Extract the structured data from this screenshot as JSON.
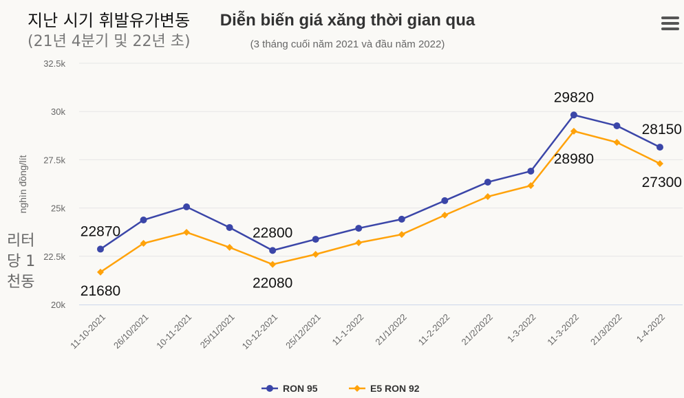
{
  "overlay_korean": {
    "title": "지난 시기 휘발유가변동",
    "subtitle": "(21년 4분기 및 22년 초)",
    "unit": "리터 당 1천동"
  },
  "menu_icon": "hamburger-menu-icon",
  "chart_data": {
    "type": "line",
    "title": "Diễn biến giá xăng thời gian qua",
    "subtitle": "(3 tháng cuối năm 2021 và đầu năm 2022)",
    "xlabel": "",
    "ylabel": "nghìn đồng/lít",
    "ylim": [
      20000,
      32500
    ],
    "yticks": [
      "20k",
      "22.5k",
      "25k",
      "27.5k",
      "30k",
      "32.5k"
    ],
    "ytick_values": [
      20000,
      22500,
      25000,
      27500,
      30000,
      32500
    ],
    "grid": true,
    "legend_position": "bottom",
    "categories": [
      "11-10-2021",
      "26/10/2021",
      "10-11-2021",
      "25/11/2021",
      "10-12-2021",
      "25/12/2021",
      "11-1-2022",
      "21/1/2022",
      "11-2-2022",
      "21/2/2022",
      "1-3-2022",
      "11-3-2022",
      "21/3/2022",
      "1-4-2022"
    ],
    "series": [
      {
        "name": "RON 95",
        "color": "#3b46a8",
        "marker": "circle",
        "values": [
          22870,
          24380,
          25060,
          23990,
          22800,
          23380,
          23950,
          24420,
          25380,
          26340,
          26910,
          29820,
          29260,
          28150
        ]
      },
      {
        "name": "E5 RON 92",
        "color": "#ffa20a",
        "marker": "diamond",
        "values": [
          21680,
          23170,
          23740,
          22960,
          22080,
          22600,
          23200,
          23630,
          24630,
          25590,
          26160,
          28980,
          28400,
          27300
        ]
      }
    ],
    "data_labels": [
      {
        "series": 0,
        "index": 0,
        "text": "22870"
      },
      {
        "series": 0,
        "index": 4,
        "text": "22800"
      },
      {
        "series": 0,
        "index": 11,
        "text": "29820"
      },
      {
        "series": 0,
        "index": 13,
        "text": "28150"
      },
      {
        "series": 1,
        "index": 0,
        "text": "21680"
      },
      {
        "series": 1,
        "index": 4,
        "text": "22080"
      },
      {
        "series": 1,
        "index": 11,
        "text": "28980"
      },
      {
        "series": 1,
        "index": 13,
        "text": "27300"
      }
    ]
  }
}
